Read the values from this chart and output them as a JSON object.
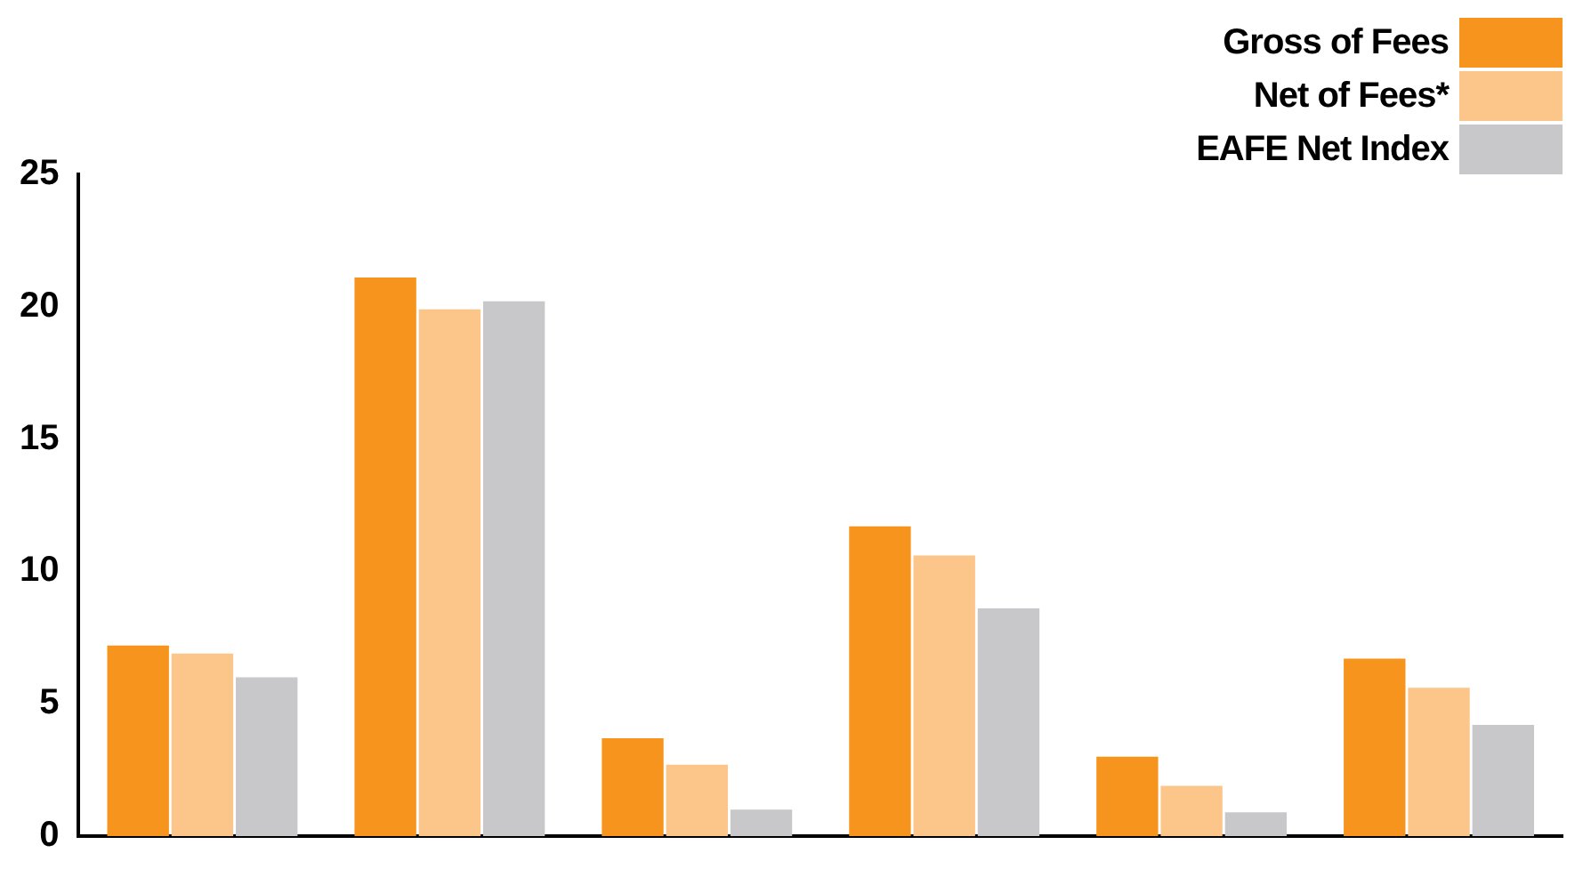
{
  "chart_data": {
    "type": "bar",
    "categories": [
      null,
      null,
      null,
      null,
      null,
      null
    ],
    "series": [
      {
        "name": "Gross of Fees",
        "color": "#f7941d",
        "values": [
          7.2,
          21.1,
          3.7,
          11.7,
          3.0,
          6.7
        ]
      },
      {
        "name": "Net of Fees*",
        "color": "#fcc68b",
        "values": [
          6.9,
          19.9,
          2.7,
          10.6,
          1.9,
          5.6
        ]
      },
      {
        "name": "EAFE Net Index",
        "color": "#c8c8ca",
        "values": [
          6.0,
          20.2,
          1.0,
          8.6,
          0.9,
          4.2
        ]
      }
    ],
    "ylim": [
      0,
      25
    ],
    "yticks": [
      0,
      5,
      10,
      15,
      20,
      25
    ],
    "grid": false,
    "legend": "top right"
  }
}
